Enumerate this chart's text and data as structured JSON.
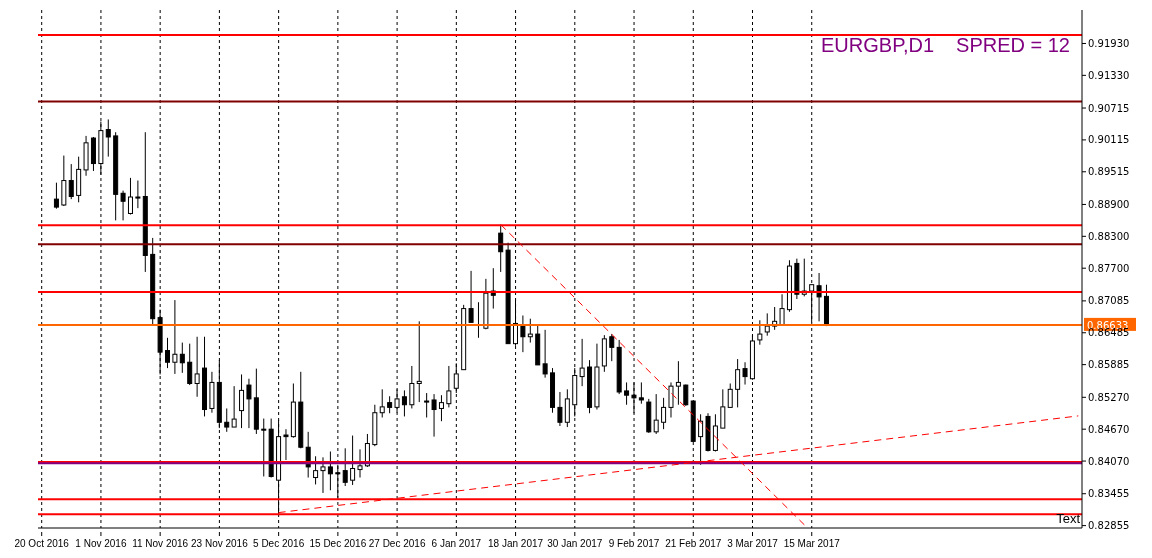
{
  "chart_data": {
    "type": "candlestick",
    "title": "EURGBP,D1",
    "subtitle": "SPRED = 12",
    "annotations": [
      "Text"
    ],
    "categories": [
      "20 Oct 2016",
      null,
      null,
      null,
      null,
      null,
      null,
      null,
      "1 Nov 2016",
      null,
      null,
      null,
      null,
      null,
      null,
      null,
      "11 Nov 2016",
      null,
      null,
      null,
      null,
      null,
      null,
      null,
      "23 Nov 2016",
      null,
      null,
      null,
      null,
      null,
      null,
      null,
      "5 Dec 2016",
      null,
      null,
      null,
      null,
      null,
      null,
      null,
      "15 Dec 2016",
      null,
      null,
      null,
      null,
      null,
      null,
      null,
      "27 Dec 2016",
      null,
      null,
      null,
      null,
      null,
      null,
      null,
      "6 Jan 2017",
      null,
      null,
      null,
      null,
      null,
      null,
      null,
      "18 Jan 2017",
      null,
      null,
      null,
      null,
      null,
      null,
      null,
      "30 Jan 2017",
      null,
      null,
      null,
      null,
      null,
      null,
      null,
      "9 Feb 2017",
      null,
      null,
      null,
      null,
      null,
      null,
      null,
      "21 Feb 2017",
      null,
      null,
      null,
      null,
      null,
      null,
      null,
      "3 Mar 2017",
      null,
      null,
      null,
      null,
      null,
      null,
      null,
      "15 Mar 2017",
      null,
      null,
      null,
      null,
      null,
      null,
      null,
      null,
      null,
      null,
      null,
      null,
      null,
      null,
      null,
      null,
      null,
      null,
      null,
      null,
      null,
      null,
      null,
      null,
      null,
      null,
      null,
      null,
      null,
      null,
      null,
      null,
      null,
      null,
      null,
      null
    ],
    "ohlc": [
      null,
      null,
      [
        0.89,
        0.8931,
        0.8882,
        0.8885
      ],
      [
        0.8889,
        0.8982,
        0.8887,
        0.8935
      ],
      [
        0.8935,
        0.8966,
        0.89,
        0.8905
      ],
      [
        0.8907,
        0.898,
        0.8894,
        0.8956
      ],
      [
        0.8955,
        0.9019,
        0.8944,
        0.9006
      ],
      [
        0.9015,
        0.9017,
        0.8953,
        0.8967
      ],
      [
        0.8967,
        0.9046,
        0.8946,
        0.9029
      ],
      [
        0.9031,
        0.905,
        0.898,
        0.9017
      ],
      [
        0.9019,
        0.9026,
        0.886,
        0.8909
      ],
      [
        0.8911,
        0.8916,
        0.886,
        0.8896
      ],
      [
        0.8873,
        0.894,
        0.8871,
        0.8904
      ],
      [
        0.8904,
        0.8935,
        0.8883,
        0.8902
      ],
      [
        0.8905,
        0.9026,
        0.8763,
        0.8794
      ],
      [
        0.8796,
        0.8827,
        0.8663,
        0.8675
      ],
      [
        0.8677,
        0.8692,
        0.857,
        0.8612
      ],
      [
        0.8615,
        0.8639,
        0.8582,
        0.8593
      ],
      [
        0.8593,
        0.871,
        0.8571,
        0.8608
      ],
      [
        0.8608,
        0.863,
        0.8573,
        0.8592
      ],
      [
        0.8593,
        0.8628,
        0.855,
        0.8553
      ],
      [
        0.8553,
        0.8641,
        0.8528,
        0.8571
      ],
      [
        0.8582,
        0.8641,
        0.8491,
        0.8504
      ],
      [
        0.8506,
        0.8575,
        0.8498,
        0.8555
      ],
      [
        0.8555,
        0.8597,
        0.8469,
        0.848
      ],
      [
        0.848,
        0.8506,
        0.8462,
        0.8471
      ],
      [
        0.8471,
        0.8548,
        0.8471,
        0.8486
      ],
      [
        0.8502,
        0.857,
        0.8469,
        0.854
      ],
      [
        0.855,
        0.8562,
        0.8469,
        0.8524
      ],
      [
        0.8526,
        0.8581,
        0.8458,
        0.8467
      ],
      [
        0.8467,
        0.8487,
        0.8378,
        0.8466
      ],
      [
        0.8467,
        0.8487,
        0.8376,
        0.8378
      ],
      [
        0.8371,
        0.8484,
        0.8307,
        0.8453
      ],
      [
        0.8456,
        0.8467,
        0.8409,
        0.8453
      ],
      [
        0.8453,
        0.8553,
        0.8451,
        0.8518
      ],
      [
        0.8518,
        0.8575,
        0.8431,
        0.8433
      ],
      [
        0.8433,
        0.8462,
        0.8376,
        0.8396
      ],
      [
        0.8376,
        0.8416,
        0.8363,
        0.8389
      ],
      [
        0.8389,
        0.8414,
        0.8347,
        0.8396
      ],
      [
        0.8396,
        0.8425,
        0.8352,
        0.8383
      ],
      [
        0.8385,
        0.84,
        0.8338,
        0.8383
      ],
      [
        0.8389,
        0.8431,
        0.836,
        0.8367
      ],
      [
        0.8371,
        0.8455,
        0.8362,
        0.8393
      ],
      [
        0.8391,
        0.8429,
        0.8376,
        0.8398
      ],
      [
        0.8398,
        0.8458,
        0.8396,
        0.844
      ],
      [
        0.8438,
        0.8513,
        0.8435,
        0.8498
      ],
      [
        0.8498,
        0.8542,
        0.8489,
        0.8509
      ],
      [
        0.8517,
        0.8529,
        0.8497,
        0.8508
      ],
      [
        0.8508,
        0.8542,
        0.8498,
        0.8524
      ],
      [
        0.8528,
        0.854,
        0.8491,
        0.8513
      ],
      [
        0.8513,
        0.8586,
        0.8506,
        0.8553
      ],
      [
        0.8553,
        0.867,
        0.8518,
        0.8557
      ],
      [
        0.852,
        0.8535,
        0.8489,
        0.8518
      ],
      [
        0.8522,
        0.8533,
        0.8453,
        0.8504
      ],
      [
        0.8506,
        0.8531,
        0.8482,
        0.8517
      ],
      [
        0.8515,
        0.8586,
        0.8508,
        0.8539
      ],
      [
        0.8544,
        0.8591,
        0.8535,
        0.8571
      ],
      [
        0.8579,
        0.8701,
        0.8579,
        0.8694
      ],
      [
        0.8694,
        0.8765,
        0.8668,
        0.8668
      ],
      [
        0.8664,
        0.8706,
        0.8639,
        0.8663
      ],
      [
        0.8657,
        0.875,
        0.8655,
        0.8723
      ],
      [
        0.8727,
        0.877,
        0.8694,
        0.8719
      ],
      [
        0.8836,
        0.8852,
        0.8763,
        0.8801
      ],
      [
        0.8804,
        0.8818,
        0.8628,
        0.8628
      ],
      [
        0.8628,
        0.871,
        0.8624,
        0.8666
      ],
      [
        0.8664,
        0.8681,
        0.8612,
        0.8641
      ],
      [
        0.8641,
        0.8675,
        0.863,
        0.8646
      ],
      [
        0.8646,
        0.8664,
        0.8588,
        0.8588
      ],
      [
        0.859,
        0.8654,
        0.8564,
        0.8571
      ],
      [
        0.8573,
        0.8582,
        0.8498,
        0.8508
      ],
      [
        0.8508,
        0.8537,
        0.8473,
        0.848
      ],
      [
        0.848,
        0.8542,
        0.8471,
        0.8524
      ],
      [
        0.8513,
        0.8582,
        0.8491,
        0.8568
      ],
      [
        0.8566,
        0.8637,
        0.8548,
        0.8582
      ],
      [
        0.8584,
        0.8597,
        0.8497,
        0.8508
      ],
      [
        0.8509,
        0.8628,
        0.8504,
        0.8584
      ],
      [
        0.8586,
        0.8644,
        0.8575,
        0.8637
      ],
      [
        0.8641,
        0.8646,
        0.8595,
        0.8621
      ],
      [
        0.8621,
        0.8635,
        0.8533,
        0.8537
      ],
      [
        0.8539,
        0.8555,
        0.8513,
        0.8531
      ],
      [
        0.8531,
        0.8555,
        0.8497,
        0.8526
      ],
      [
        0.8526,
        0.8555,
        0.8515,
        0.8522
      ],
      [
        0.8518,
        0.8524,
        0.846,
        0.8462
      ],
      [
        0.8462,
        0.8533,
        0.8458,
        0.8484
      ],
      [
        0.848,
        0.8526,
        0.8467,
        0.8508
      ],
      [
        0.8508,
        0.8555,
        0.8489,
        0.8548
      ],
      [
        0.8548,
        0.8595,
        0.8513,
        0.8555
      ],
      [
        0.855,
        0.8551,
        0.8511,
        0.8513
      ],
      [
        0.852,
        0.852,
        0.8444,
        0.8444
      ],
      [
        0.8453,
        0.8495,
        0.84,
        0.8482
      ],
      [
        0.8491,
        0.8497,
        0.8425,
        0.8427
      ],
      [
        0.8427,
        0.8495,
        0.8425,
        0.8473
      ],
      [
        0.8469,
        0.8542,
        0.8469,
        0.8509
      ],
      [
        0.8508,
        0.8553,
        0.8508,
        0.8542
      ],
      [
        0.8542,
        0.8599,
        0.8508,
        0.8579
      ],
      [
        0.8581,
        0.8593,
        0.8551,
        0.8566
      ],
      [
        0.8562,
        0.8644,
        0.856,
        0.8633
      ],
      [
        0.8635,
        0.8672,
        0.8626,
        0.8646
      ],
      [
        0.865,
        0.8685,
        0.8643,
        0.8661
      ],
      [
        0.8661,
        0.8697,
        0.8654,
        0.867
      ],
      [
        0.8664,
        0.8721,
        0.8663,
        0.8694
      ],
      [
        0.8692,
        0.8785,
        0.8688,
        0.8774
      ],
      [
        0.8779,
        0.8788,
        0.8712,
        0.8721
      ],
      [
        0.8721,
        0.8788,
        0.8717,
        0.8727
      ],
      [
        0.8727,
        0.8739,
        0.8668,
        0.8739
      ],
      [
        0.8737,
        0.8761,
        0.867,
        0.8716
      ],
      [
        0.8717,
        0.8739,
        0.8661,
        0.8663
      ],
      null,
      null,
      null,
      null,
      null,
      null,
      null,
      null,
      null,
      null,
      null,
      null,
      null,
      null,
      null,
      null,
      null,
      null,
      null,
      null,
      null,
      null,
      null,
      null,
      null,
      null,
      null,
      null,
      null,
      null,
      null,
      null,
      null,
      null
    ],
    "series": [
      {
        "type": "line",
        "color": "#ff0000",
        "line_style": "dashed",
        "values": [
          null,
          null,
          null,
          null,
          null,
          null,
          null,
          null,
          null,
          null,
          null,
          null,
          null,
          null,
          null,
          null,
          null,
          null,
          null,
          null,
          null,
          null,
          null,
          null,
          null,
          null,
          null,
          null,
          null,
          null,
          null,
          null,
          0.831,
          null,
          null,
          null,
          null,
          null,
          null,
          null,
          null,
          null,
          null,
          null,
          null,
          null,
          null,
          null,
          null,
          null,
          null,
          null,
          null,
          null,
          null,
          null,
          null,
          null,
          null,
          null,
          null,
          null,
          null,
          null,
          null,
          null,
          null,
          null,
          null,
          null,
          null,
          null,
          null,
          null,
          null,
          null,
          null,
          null,
          null,
          null,
          null,
          null,
          null,
          null,
          null,
          null,
          null,
          null,
          null,
          null,
          null,
          null,
          null,
          null,
          null,
          null,
          null,
          null,
          null,
          null,
          null,
          null,
          null,
          null,
          null,
          null,
          null,
          null,
          null,
          null,
          null,
          null,
          null,
          null,
          null,
          null,
          null,
          null,
          null,
          null,
          null,
          null,
          null,
          null,
          null,
          null,
          null,
          null,
          null,
          null,
          null,
          null,
          null,
          null,
          null,
          null,
          null,
          null,
          null,
          null,
          0.8492
        ]
      },
      {
        "type": "line",
        "color": "#ff0000",
        "line_style": "dashed",
        "values": [
          null,
          null,
          null,
          null,
          null,
          null,
          null,
          null,
          null,
          null,
          null,
          null,
          null,
          null,
          null,
          null,
          null,
          null,
          null,
          null,
          null,
          null,
          null,
          null,
          null,
          null,
          null,
          null,
          null,
          null,
          null,
          null,
          null,
          null,
          null,
          null,
          null,
          null,
          null,
          null,
          null,
          null,
          null,
          null,
          null,
          null,
          null,
          null,
          null,
          null,
          null,
          null,
          null,
          null,
          null,
          null,
          null,
          null,
          null,
          null,
          null,
          null,
          0.8852,
          null,
          null,
          null,
          null,
          null,
          null,
          null,
          null,
          null,
          null,
          null,
          null,
          null,
          null,
          null,
          null,
          null,
          null,
          null,
          null,
          null,
          null,
          null,
          null,
          null,
          null,
          null,
          null,
          null,
          null,
          null,
          null,
          null,
          null,
          null,
          null,
          null,
          null,
          null,
          null,
          0.8287,
          null,
          null,
          null,
          null,
          null,
          null,
          null,
          null,
          null,
          null,
          null,
          null,
          null,
          null,
          null,
          null,
          null,
          null,
          null,
          null,
          null,
          null,
          null,
          null,
          null,
          null,
          null,
          null,
          null,
          null,
          null,
          null,
          null,
          null,
          null,
          null,
          null
        ]
      }
    ],
    "ref_lines": [
      {
        "axis": "y",
        "value": 0.9209,
        "color": "#ff0000"
      },
      {
        "axis": "y",
        "value": 0.9084,
        "color": "#800000"
      },
      {
        "axis": "y",
        "value": 0.8851,
        "color": "#ff0000"
      },
      {
        "axis": "y",
        "value": 0.8815,
        "color": "#800000"
      },
      {
        "axis": "y",
        "value": 0.8725,
        "color": "#ff0000"
      },
      {
        "axis": "y",
        "value": 0.86633,
        "color": "#ff6600",
        "label": "0.86633"
      },
      {
        "axis": "y",
        "value": 0.8405,
        "color": "#ff0000"
      },
      {
        "axis": "y",
        "value": 0.8403,
        "color": "#800080"
      },
      {
        "axis": "y",
        "value": 0.8335,
        "color": "#ff0000"
      },
      {
        "axis": "y",
        "value": 0.8307,
        "color": "#ff0000"
      }
    ],
    "ylim": [
      0.8281,
      0.9256
    ],
    "yticks": [
      {
        "value": 0.82855,
        "label": "0.82855"
      },
      {
        "value": 0.83455,
        "label": "0.83455"
      },
      {
        "value": 0.8407,
        "label": "0.84070"
      },
      {
        "value": 0.8467,
        "label": "0.84670"
      },
      {
        "value": 0.8527,
        "label": "0.85270"
      },
      {
        "value": 0.85885,
        "label": "0.85885"
      },
      {
        "value": 0.86485,
        "label": "0.86485"
      },
      {
        "value": 0.87085,
        "label": "0.87085"
      },
      {
        "value": 0.877,
        "label": "0.87700"
      },
      {
        "value": 0.883,
        "label": "0.88300"
      },
      {
        "value": 0.889,
        "label": "0.88900"
      },
      {
        "value": 0.89515,
        "label": "0.89515"
      },
      {
        "value": 0.90115,
        "label": "0.90115"
      },
      {
        "value": 0.90715,
        "label": "0.90715"
      },
      {
        "value": 0.9133,
        "label": "0.91330"
      },
      {
        "value": 0.9193,
        "label": "0.91930"
      }
    ],
    "grid": "x"
  }
}
